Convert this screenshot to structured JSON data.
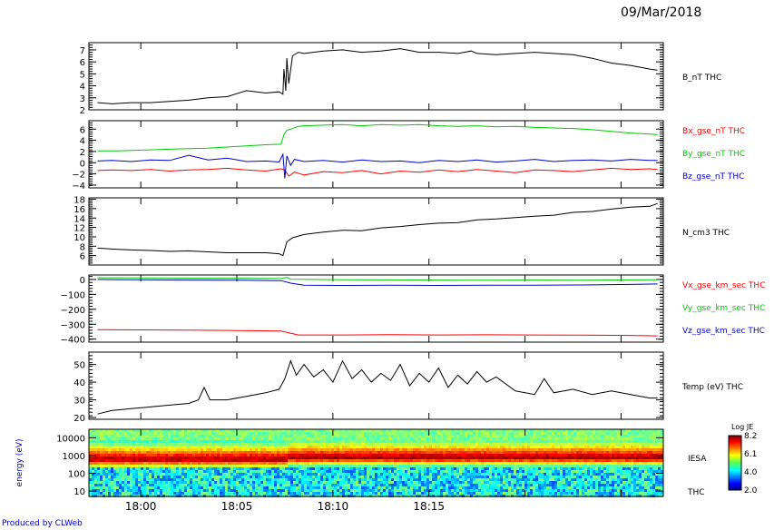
{
  "header": {
    "date": "09/Mar/2018"
  },
  "footer": {
    "credit": "Produced by CLWeb"
  },
  "colorbar": {
    "title": "Log JE",
    "ticks": [
      "8.2",
      "6.1",
      "4.0",
      "2.0"
    ]
  },
  "chart_data": [
    {
      "type": "line",
      "panel": "b_nt",
      "ylim": [
        2,
        7.6
      ],
      "yticks": [
        2,
        3,
        4,
        5,
        6,
        7
      ],
      "series": [
        {
          "name": "B_nT THC",
          "color": "#000000",
          "x": [
            17.75,
            18.5,
            19.5,
            20.5,
            21.5,
            22.5,
            23.5,
            24.5,
            25.5,
            26.5,
            27.2,
            27.4,
            27.45,
            27.55,
            27.6,
            27.7,
            27.9,
            28.2,
            28.5,
            29.5,
            30.5,
            31.5,
            32.5,
            33.5,
            34.5,
            35.5,
            36.5,
            37.2,
            37.5,
            38.5,
            39.5,
            40.5,
            41.5,
            42.5,
            43.5,
            44.5,
            45.5,
            46.5,
            46.9
          ],
          "y": [
            2.6,
            2.5,
            2.6,
            2.6,
            2.7,
            2.8,
            3.0,
            3.1,
            3.6,
            3.4,
            3.5,
            3.3,
            5.4,
            3.6,
            6.3,
            4.2,
            6.5,
            6.8,
            6.7,
            6.9,
            7.0,
            6.8,
            6.9,
            7.1,
            6.8,
            6.8,
            6.7,
            6.9,
            6.7,
            6.6,
            6.7,
            6.8,
            6.7,
            6.6,
            6.3,
            5.9,
            5.7,
            5.4,
            5.3
          ]
        }
      ],
      "legend": [
        {
          "label": "B_nT THC",
          "color": "#000000"
        }
      ]
    },
    {
      "type": "line",
      "panel": "b_gse",
      "ylim": [
        -4.5,
        7.5
      ],
      "yticks": [
        -4,
        -2,
        0,
        2,
        4,
        6
      ],
      "series": [
        {
          "name": "Bx_gse_nT THC",
          "color": "#ff0000",
          "x": [
            17.75,
            18.5,
            19.5,
            20.5,
            21.5,
            22.5,
            23.5,
            24.5,
            25.5,
            26.5,
            27.3,
            27.5,
            27.7,
            28.0,
            28.5,
            29.5,
            30.5,
            31.5,
            32.5,
            33.5,
            34.5,
            35.5,
            36.5,
            37.5,
            38.5,
            39.5,
            40.5,
            41.5,
            42.5,
            43.5,
            44.5,
            45.5,
            46.5,
            46.9
          ],
          "y": [
            -1.4,
            -1.3,
            -1.4,
            -1.2,
            -1.5,
            -1.3,
            -1.2,
            -1.0,
            -1.3,
            -1.5,
            -1.1,
            -1.3,
            -2.4,
            -1.7,
            -2.2,
            -1.6,
            -1.8,
            -1.4,
            -2.0,
            -1.5,
            -1.7,
            -1.3,
            -1.6,
            -1.2,
            -1.5,
            -1.8,
            -1.3,
            -1.4,
            -1.6,
            -1.3,
            -1.0,
            -1.2,
            -1.1,
            -1.2
          ]
        },
        {
          "name": "By_gse_nT THC",
          "color": "#00cc00",
          "x": [
            17.75,
            18.5,
            19.5,
            20.5,
            21.5,
            22.5,
            23.5,
            24.5,
            25.5,
            26.5,
            27.3,
            27.45,
            27.6,
            27.8,
            28.2,
            28.5,
            29.5,
            30.5,
            31.5,
            32.5,
            33.5,
            34.5,
            35.5,
            36.5,
            37.5,
            38.5,
            39.5,
            40.5,
            41.5,
            42.5,
            43.5,
            44.5,
            45.5,
            46.5,
            46.9
          ],
          "y": [
            2.1,
            2.1,
            2.2,
            2.3,
            2.4,
            2.5,
            2.6,
            2.8,
            3.0,
            3.2,
            3.3,
            5.0,
            5.8,
            6.0,
            6.5,
            6.6,
            6.7,
            6.8,
            6.6,
            6.8,
            6.7,
            6.8,
            6.6,
            6.5,
            6.6,
            6.4,
            6.5,
            6.3,
            6.2,
            6.1,
            5.9,
            5.6,
            5.3,
            5.1,
            5.0
          ]
        },
        {
          "name": "Bz_gse_nT THC",
          "color": "#0000cc",
          "x": [
            17.75,
            18.5,
            19.5,
            20.5,
            21.5,
            22.5,
            23.5,
            24.5,
            25.5,
            26.5,
            27.2,
            27.4,
            27.5,
            27.6,
            27.8,
            28.0,
            28.5,
            29.5,
            30.5,
            31.5,
            32.5,
            33.5,
            34.5,
            35.5,
            36.5,
            37.5,
            38.5,
            39.5,
            40.5,
            41.5,
            42.5,
            43.5,
            44.5,
            45.5,
            46.5,
            46.9
          ],
          "y": [
            0.3,
            0.4,
            0.2,
            0.5,
            0.4,
            1.3,
            0.5,
            0.8,
            0.2,
            0.3,
            0.1,
            1.5,
            -2.8,
            1.2,
            -0.5,
            0.6,
            0.2,
            0.4,
            0.1,
            0.5,
            0.2,
            0.3,
            0.0,
            0.4,
            0.2,
            0.5,
            0.1,
            0.3,
            0.6,
            0.2,
            0.4,
            0.5,
            0.3,
            0.6,
            0.4,
            0.4
          ]
        }
      ],
      "legend": [
        {
          "label": "Bx_gse_nT THC",
          "color": "#ff0000"
        },
        {
          "label": "By_gse_nT THC",
          "color": "#00cc00"
        },
        {
          "label": "Bz_gse_nT THC",
          "color": "#0000cc"
        }
      ]
    },
    {
      "type": "line",
      "panel": "density",
      "ylim": [
        4,
        18.3
      ],
      "yticks": [
        6,
        8,
        10,
        12,
        14,
        16,
        18
      ],
      "series": [
        {
          "name": "N_cm3 THC",
          "color": "#000000",
          "x": [
            17.75,
            18.5,
            19.5,
            20.5,
            21.5,
            22.5,
            23.5,
            24.5,
            25.5,
            26.5,
            27.2,
            27.4,
            27.6,
            27.9,
            28.5,
            29.5,
            30.5,
            31.5,
            32.5,
            33.5,
            34.5,
            35.5,
            36.5,
            37.5,
            38.5,
            39.5,
            40.5,
            41.5,
            42.5,
            43.5,
            44.5,
            45.5,
            46.5,
            46.9
          ],
          "y": [
            7.6,
            7.4,
            7.2,
            7.1,
            6.9,
            7.0,
            6.8,
            6.6,
            6.6,
            6.6,
            6.4,
            6.0,
            8.9,
            9.8,
            10.5,
            11.0,
            11.4,
            11.3,
            11.9,
            12.2,
            12.6,
            12.9,
            13.0,
            13.6,
            13.8,
            14.1,
            14.4,
            14.6,
            15.2,
            15.4,
            15.9,
            16.3,
            16.5,
            17.1
          ]
        }
      ],
      "legend": [
        {
          "label": "N_cm3 THC",
          "color": "#000000"
        }
      ]
    },
    {
      "type": "line",
      "panel": "velocity",
      "ylim": [
        -420,
        30
      ],
      "yticks": [
        0,
        -100,
        -200,
        -300,
        -400
      ],
      "series": [
        {
          "name": "Vx_gse_km_sec THC",
          "color": "#ff0000",
          "x": [
            17.75,
            20,
            22.5,
            25,
            27.3,
            27.8,
            28.2,
            30.5,
            33,
            35.5,
            38,
            40.5,
            43,
            45.5,
            46.9
          ],
          "y": [
            -336,
            -338,
            -340,
            -342,
            -346,
            -360,
            -372,
            -372,
            -370,
            -372,
            -371,
            -372,
            -373,
            -375,
            -378
          ]
        },
        {
          "name": "Vy_gse_km_sec THC",
          "color": "#00cc00",
          "x": [
            17.75,
            20,
            22.5,
            25,
            27.3,
            27.6,
            27.8,
            30.5,
            33,
            35.5,
            38,
            40.5,
            43,
            45.5,
            46.9
          ],
          "y": [
            12,
            10,
            9,
            8,
            6,
            14,
            2,
            -2,
            -3,
            -4,
            -5,
            -4,
            -5,
            -3,
            -2
          ]
        },
        {
          "name": "Vz_gse_km_sec THC",
          "color": "#0000cc",
          "x": [
            17.75,
            20,
            22.5,
            25,
            27.3,
            27.8,
            28.5,
            30.5,
            33,
            35.5,
            38,
            40.5,
            43,
            45.5,
            46.9
          ],
          "y": [
            0,
            -2,
            -4,
            -5,
            -8,
            -25,
            -38,
            -40,
            -38,
            -40,
            -39,
            -38,
            -37,
            -33,
            -30
          ]
        }
      ],
      "legend": [
        {
          "label": "Vx_gse_km_sec THC",
          "color": "#ff0000"
        },
        {
          "label": "Vy_gse_km_sec THC",
          "color": "#00cc00"
        },
        {
          "label": "Vz_gse_km_sec THC",
          "color": "#0000cc"
        }
      ]
    },
    {
      "type": "line",
      "panel": "temperature",
      "ylim": [
        19,
        57
      ],
      "yticks": [
        20,
        30,
        40,
        50
      ],
      "series": [
        {
          "name": "Temp (eV) THC",
          "color": "#000000",
          "x": [
            17.75,
            18.5,
            19.5,
            20.5,
            21.5,
            22.5,
            23.0,
            23.3,
            23.6,
            24.5,
            25.5,
            26.5,
            27.2,
            27.5,
            27.8,
            28.1,
            28.5,
            29.0,
            29.5,
            30.0,
            30.5,
            31.0,
            31.5,
            32.0,
            32.5,
            33.0,
            33.5,
            34.0,
            34.5,
            35.0,
            35.5,
            36.0,
            36.5,
            37.0,
            37.5,
            38.0,
            38.5,
            39.5,
            40.5,
            41.0,
            41.5,
            42.5,
            43.5,
            44.5,
            45.5,
            46.5,
            46.9
          ],
          "y": [
            22,
            24,
            25,
            26,
            27,
            28,
            30,
            37,
            30,
            30,
            32,
            34,
            36,
            42,
            52,
            44,
            50,
            43,
            47,
            40,
            52,
            42,
            47,
            40,
            45,
            41,
            50,
            38,
            45,
            40,
            48,
            37,
            44,
            39,
            46,
            40,
            43,
            35,
            33,
            42,
            34,
            36,
            33,
            35,
            33,
            31,
            31
          ]
        }
      ],
      "legend": [
        {
          "label": "Temp (eV) THC",
          "color": "#000000"
        }
      ]
    },
    {
      "type": "heatmap",
      "panel": "spectrogram",
      "ylabel": "energy (eV)",
      "ylim": [
        5,
        30000
      ],
      "yscale": "log",
      "yticks": [
        10,
        100,
        1000,
        10000
      ],
      "ytick_labels": [
        "10",
        "100",
        "1000",
        "10000"
      ],
      "colorscale_range": [
        2.0,
        8.2
      ],
      "label_right": "IESA",
      "label_right_bottom": "THC",
      "band_peak_energy_eV": {
        "before_18_07": 700,
        "after_18_08": 900
      }
    }
  ],
  "xaxis": {
    "xlim": [
      17.3,
      47.2
    ],
    "ticks": [
      20,
      25,
      30,
      35,
      40,
      45
    ],
    "tick_labels": [
      "18:00",
      "18:05",
      "18:10",
      "18:15"
    ],
    "tick_label_positions": [
      20,
      25,
      30,
      35
    ]
  }
}
